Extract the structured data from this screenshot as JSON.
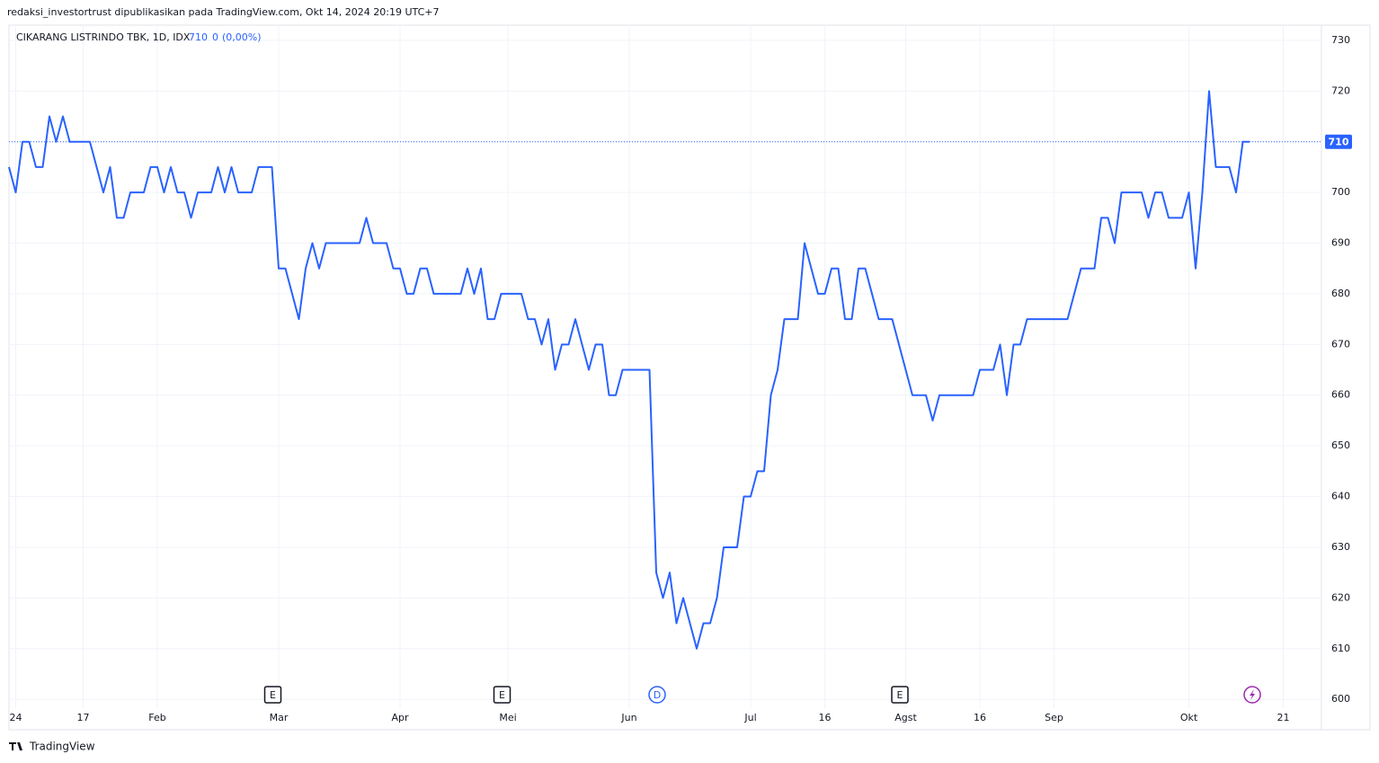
{
  "attribution": "redaksi_investortrust dipublikasikan pada TradingView.com, Okt 14, 2024 20:19 UTC+7",
  "header": {
    "symbol": "CIKARANG LISTRINDO TBK, 1D, IDX",
    "change": "0",
    "change_pct": "(0,00%)"
  },
  "events": [
    "E",
    "E",
    "D",
    "E"
  ],
  "footer": {
    "brand": "TradingView"
  },
  "chart_data": {
    "type": "line",
    "categories": [
      null,
      "24",
      null,
      null,
      null,
      null,
      null,
      null,
      null,
      null,
      null,
      "17",
      null,
      null,
      null,
      null,
      null,
      null,
      null,
      null,
      null,
      null,
      "Feb",
      null,
      null,
      null,
      null,
      null,
      null,
      null,
      null,
      null,
      null,
      null,
      null,
      null,
      null,
      null,
      null,
      null,
      "Mar",
      null,
      null,
      null,
      null,
      null,
      null,
      null,
      null,
      null,
      null,
      null,
      null,
      null,
      null,
      null,
      null,
      null,
      "Apr",
      null,
      null,
      null,
      null,
      null,
      null,
      null,
      null,
      null,
      null,
      null,
      null,
      null,
      null,
      null,
      "Mei",
      null,
      null,
      null,
      null,
      null,
      null,
      null,
      null,
      null,
      null,
      null,
      null,
      null,
      null,
      null,
      null,
      null,
      "Jun",
      null,
      null,
      null,
      null,
      null,
      null,
      null,
      null,
      null,
      null,
      null,
      null,
      null,
      null,
      null,
      null,
      null,
      "Jul",
      null,
      null,
      null,
      null,
      null,
      null,
      null,
      null,
      null,
      null,
      "16",
      null,
      null,
      null,
      null,
      null,
      null,
      null,
      null,
      null,
      null,
      null,
      "Agst",
      null,
      null,
      null,
      null,
      null,
      null,
      null,
      null,
      null,
      null,
      "16",
      null,
      null,
      null,
      null,
      null,
      null,
      null,
      null,
      null,
      null,
      "Sep",
      null,
      null,
      null,
      null,
      null,
      null,
      null,
      null,
      null,
      null,
      null,
      null,
      null,
      null,
      null,
      null,
      null,
      null,
      null,
      "Okt",
      null,
      null,
      null,
      null,
      null,
      null,
      null,
      null,
      null,
      null,
      null,
      null,
      null,
      "21"
    ],
    "series": [
      {
        "name": "CIKARANG LISTRINDO TBK",
        "color": "#2962ff",
        "values": [
          705,
          700,
          710,
          710,
          705,
          705,
          715,
          710,
          715,
          710,
          710,
          710,
          710,
          705,
          700,
          705,
          695,
          695,
          700,
          700,
          700,
          705,
          705,
          700,
          705,
          700,
          700,
          695,
          700,
          700,
          700,
          705,
          700,
          705,
          700,
          700,
          700,
          705,
          705,
          705,
          685,
          685,
          680,
          675,
          685,
          690,
          685,
          690,
          690,
          690,
          690,
          690,
          690,
          695,
          690,
          690,
          690,
          685,
          685,
          680,
          680,
          685,
          685,
          680,
          680,
          680,
          680,
          680,
          685,
          680,
          685,
          675,
          675,
          680,
          680,
          680,
          680,
          675,
          675,
          670,
          675,
          665,
          670,
          670,
          675,
          670,
          665,
          670,
          670,
          660,
          660,
          665,
          665,
          665,
          665,
          665,
          625,
          620,
          625,
          615,
          620,
          615,
          610,
          615,
          615,
          620,
          630,
          630,
          630,
          640,
          640,
          645,
          645,
          660,
          665,
          675,
          675,
          675,
          690,
          685,
          680,
          680,
          685,
          685,
          675,
          675,
          685,
          685,
          680,
          675,
          675,
          675,
          670,
          665,
          660,
          660,
          660,
          655,
          660,
          660,
          660,
          660,
          660,
          660,
          665,
          665,
          665,
          670,
          660,
          670,
          670,
          675,
          675,
          675,
          675,
          675,
          675,
          675,
          680,
          685,
          685,
          685,
          695,
          695,
          690,
          700,
          700,
          700,
          700,
          695,
          700,
          700,
          695,
          695,
          695,
          700,
          685,
          700,
          720,
          705,
          705,
          705,
          700,
          710,
          710,
          null,
          null,
          null,
          null,
          null
        ]
      }
    ],
    "ylim": [
      594,
      733
    ],
    "yticks": [
      600,
      610,
      620,
      630,
      640,
      650,
      660,
      670,
      680,
      690,
      700,
      710,
      720,
      730
    ],
    "grid": true
  }
}
